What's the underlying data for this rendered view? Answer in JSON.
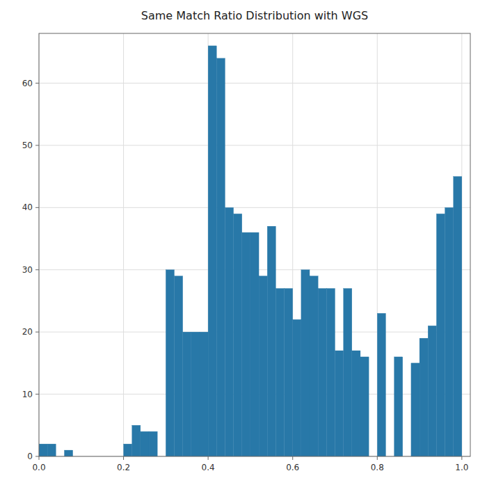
{
  "chart_data": {
    "type": "histogram",
    "title": "Same Match Ratio Distribution with WGS",
    "bins": [
      0.0,
      0.02,
      0.04,
      0.06,
      0.08,
      0.1,
      0.12,
      0.14,
      0.16,
      0.18,
      0.2,
      0.22,
      0.24,
      0.26,
      0.28,
      0.3,
      0.32,
      0.34,
      0.36,
      0.38,
      0.4,
      0.42,
      0.44,
      0.46,
      0.48,
      0.5,
      0.52,
      0.54,
      0.56,
      0.58,
      0.6,
      0.62,
      0.64,
      0.66,
      0.68,
      0.7,
      0.72,
      0.74,
      0.76,
      0.78,
      0.8,
      0.82,
      0.84,
      0.86,
      0.88,
      0.9,
      0.92,
      0.94,
      0.96,
      0.98,
      1.0
    ],
    "values": [
      2,
      2,
      0,
      1,
      0,
      0,
      0,
      0,
      0,
      0,
      2,
      5,
      4,
      4,
      0,
      30,
      29,
      20,
      20,
      20,
      66,
      64,
      40,
      39,
      36,
      36,
      29,
      37,
      27,
      27,
      22,
      30,
      29,
      27,
      27,
      17,
      27,
      17,
      16,
      0,
      23,
      0,
      16,
      0,
      15,
      19,
      21,
      39,
      40,
      45
    ],
    "color": "#2878a8",
    "xlim": [
      0.0,
      1.02
    ],
    "ylim": [
      0,
      68
    ],
    "xticks": [
      {
        "value": 0.0,
        "label": "0.0"
      },
      0.2,
      0.4,
      0.6,
      0.8,
      {
        "value": 1.0,
        "label": "1.0"
      }
    ],
    "yticks": [
      0,
      10,
      20,
      30,
      40,
      50,
      60
    ],
    "grid": true
  }
}
